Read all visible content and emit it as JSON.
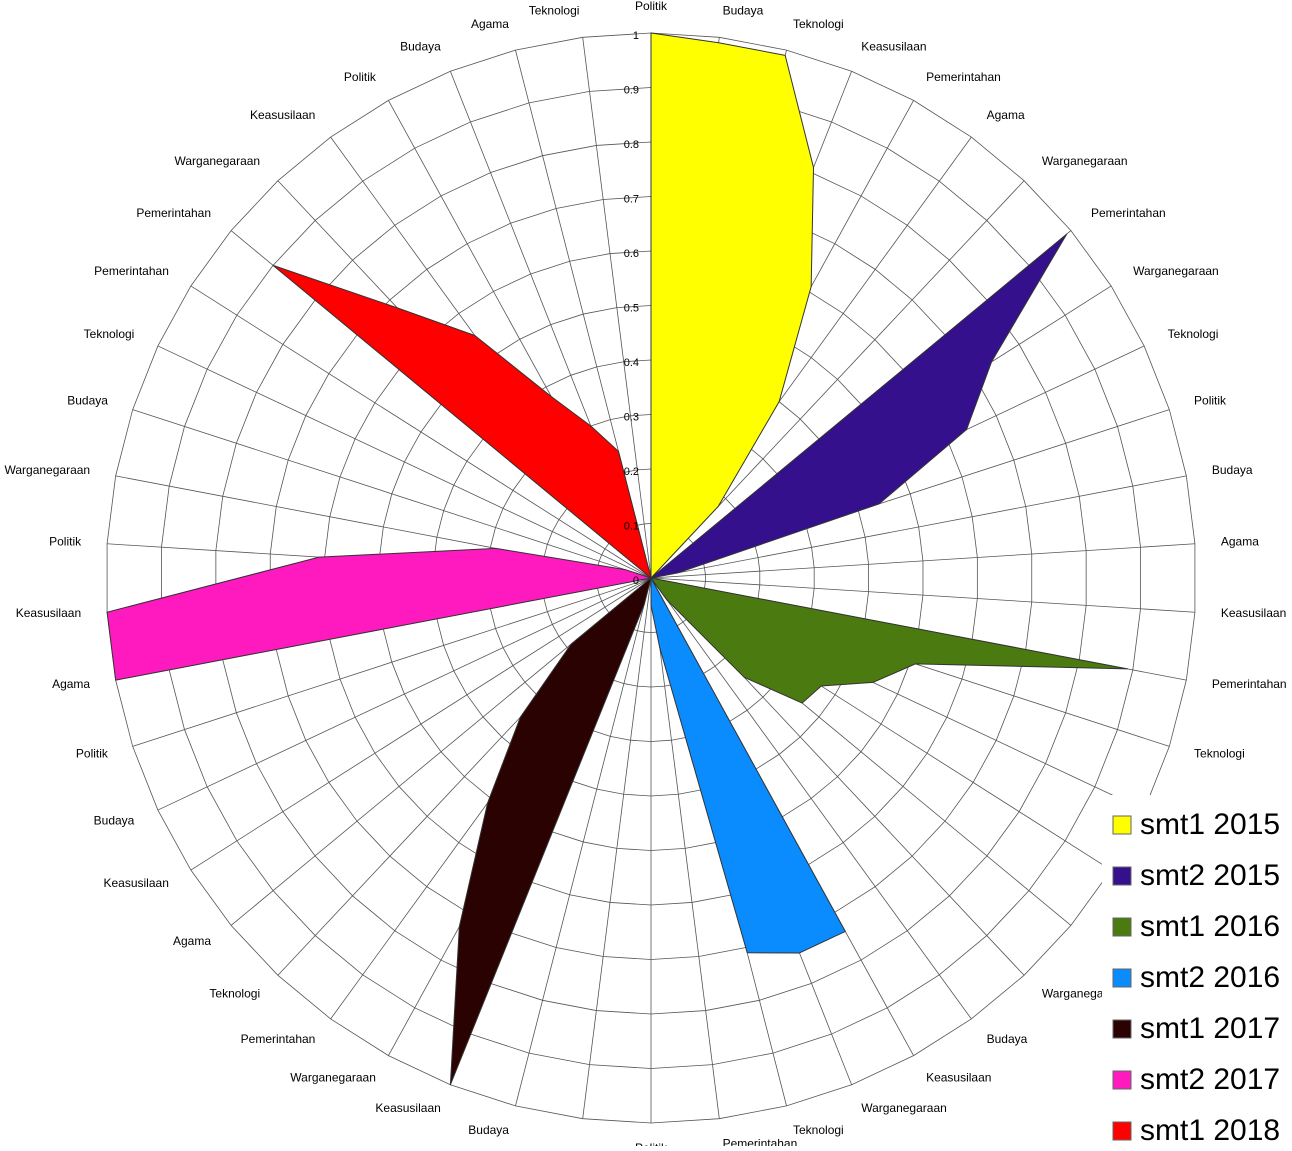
{
  "chart_data": {
    "type": "radar",
    "categories": [
      "Politik",
      "Budaya",
      "Teknologi",
      "Keasusilaan",
      "Pemerintahan",
      "Agama",
      "Warganegaraan",
      "Pemerintahan",
      "Warganegaraan",
      "Teknologi",
      "Politik",
      "Budaya",
      "Agama",
      "Keasusilaan",
      "Pemerintahan",
      "Teknologi",
      null,
      null,
      null,
      "Warganegaraan",
      "Budaya",
      "Keasusilaan",
      "Warganegaraan",
      "Teknologi",
      "Pemerintahan",
      "Politik",
      null,
      "Budaya",
      "Keasusilaan",
      "Warganegaraan",
      "Pemerintahan",
      "Teknologi",
      "Agama",
      "Keasusilaan",
      "Budaya",
      "Politik",
      "Agama",
      "Keasusilaan",
      "Politik",
      "Warganegaraan",
      "Budaya",
      "Teknologi",
      "Pemerintahan",
      "Pemerintahan",
      "Warganegaraan",
      "Keasusilaan",
      "Politik",
      "Budaya",
      "Agama",
      "Teknologi"
    ],
    "series": [
      {
        "name": "smt1 2015",
        "color": "#ffff00",
        "values": [
          1,
          0.99,
          0.99,
          0.81,
          0.61,
          0.4,
          0.18,
          0,
          0,
          0,
          0,
          0,
          0,
          0,
          0,
          0,
          0,
          0,
          0,
          0,
          0,
          0,
          0,
          0,
          0,
          0,
          0,
          0,
          0,
          0,
          0,
          0,
          0,
          0,
          0,
          0,
          0,
          0,
          0,
          0,
          0,
          0,
          0,
          0,
          0,
          0,
          0,
          0,
          0,
          0
        ]
      },
      {
        "name": "smt2 2015",
        "color": "#35108c",
        "values": [
          0,
          0,
          0,
          0,
          0,
          0,
          0,
          0.99,
          0.74,
          0.64,
          0.44,
          0.05,
          0,
          0,
          0,
          0,
          0,
          0,
          0,
          0,
          0,
          0,
          0,
          0,
          0,
          0,
          0,
          0,
          0,
          0,
          0,
          0,
          0,
          0,
          0,
          0,
          0,
          0,
          0,
          0,
          0,
          0,
          0,
          0,
          0,
          0,
          0,
          0,
          0,
          0
        ]
      },
      {
        "name": "smt1 2016",
        "color": "#4a7a10",
        "values": [
          0,
          0,
          0,
          0,
          0,
          0,
          0,
          0,
          0,
          0,
          0,
          0,
          0,
          0,
          0.89,
          0.51,
          0.45,
          0.37,
          0.36,
          0.25,
          0.05,
          0,
          0,
          0,
          0,
          0,
          0,
          0,
          0,
          0,
          0,
          0,
          0,
          0,
          0,
          0,
          0,
          0,
          0,
          0,
          0,
          0,
          0,
          0,
          0,
          0,
          0,
          0,
          0,
          0
        ]
      },
      {
        "name": "smt2 2016",
        "color": "#0a8cff",
        "values": [
          0,
          0,
          0,
          0,
          0,
          0,
          0,
          0,
          0,
          0,
          0,
          0,
          0,
          0,
          0,
          0,
          0,
          0,
          0,
          0,
          0,
          0.74,
          0.74,
          0.71,
          0.13,
          0.05,
          0,
          0,
          0,
          0,
          0,
          0,
          0,
          0,
          0,
          0,
          0,
          0,
          0,
          0,
          0,
          0,
          0,
          0,
          0,
          0,
          0,
          0,
          0,
          0
        ]
      },
      {
        "name": "smt1 2017",
        "color": "#2a0202",
        "values": [
          0,
          0,
          0,
          0,
          0,
          0,
          0,
          0,
          0,
          0,
          0,
          0,
          0,
          0,
          0,
          0,
          0,
          0,
          0,
          0,
          0,
          0,
          0,
          0,
          0,
          0,
          0,
          0.05,
          1,
          0.73,
          0.51,
          0.35,
          0.19,
          0,
          0,
          0,
          0,
          0,
          0,
          0,
          0,
          0,
          0,
          0,
          0,
          0,
          0,
          0,
          0,
          0
        ]
      },
      {
        "name": "smt2 2017",
        "color": "#ff1ac0",
        "values": [
          0,
          0,
          0,
          0,
          0,
          0,
          0,
          0,
          0,
          0,
          0,
          0,
          0,
          0,
          0,
          0,
          0,
          0,
          0,
          0,
          0,
          0,
          0,
          0,
          0,
          0,
          0,
          0,
          0,
          0,
          0,
          0,
          0,
          0,
          0,
          0,
          1,
          1,
          0.61,
          0.29,
          0.05,
          0,
          0,
          0,
          0,
          0,
          0,
          0,
          0,
          0
        ]
      },
      {
        "name": "smt1 2018",
        "color": "#ff0000",
        "values": [
          0,
          0,
          0,
          0,
          0,
          0,
          0,
          0,
          0,
          0,
          0,
          0,
          0,
          0,
          0,
          0,
          0,
          0,
          0,
          0,
          0,
          0,
          0,
          0,
          0,
          0,
          0,
          0,
          0,
          0,
          0,
          0,
          0,
          0,
          0,
          0,
          0,
          0,
          0,
          0,
          0,
          0,
          0,
          0.9,
          0.68,
          0.55,
          0.38,
          0.3,
          0.24,
          0
        ]
      }
    ],
    "ylim": [
      0,
      1
    ],
    "yticks": [
      0,
      0.1,
      0.2,
      0.3,
      0.4,
      0.5,
      0.6,
      0.7,
      0.8,
      0.9,
      1
    ],
    "grid": true,
    "legend": "bottom-right"
  }
}
